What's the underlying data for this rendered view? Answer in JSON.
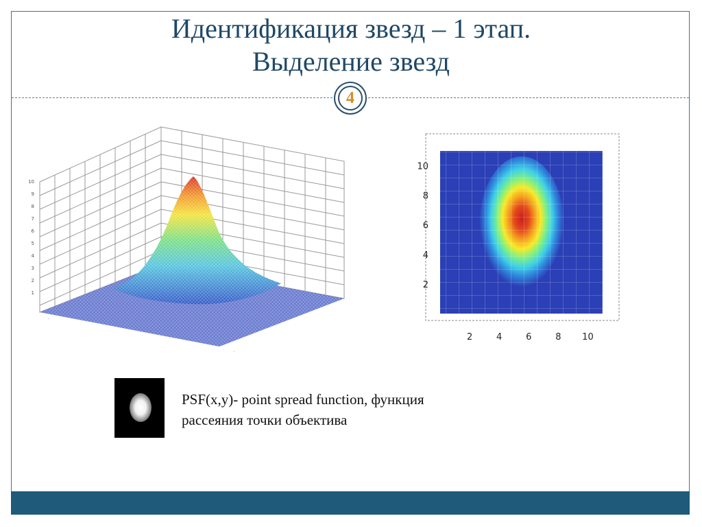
{
  "slide": {
    "title_line1": "Идентификация звезд – 1 этап.",
    "title_line2": "Выделение звезд",
    "page_number": "4"
  },
  "psf_surface": {
    "type": "3d-surface",
    "z_ticks": [
      "1",
      "2",
      "3",
      "4",
      "5",
      "6",
      "7",
      "8",
      "9",
      "10"
    ]
  },
  "heatmap": {
    "type": "heatmap",
    "x_ticks": [
      "2",
      "4",
      "6",
      "8",
      "10"
    ],
    "y_ticks": [
      "2",
      "4",
      "6",
      "8",
      "10"
    ]
  },
  "star_image": {
    "icon": "star-blob"
  },
  "caption": {
    "line1": "PSF(x,y)- point spread function, функция",
    "line2": "рассеяния точки объектива"
  },
  "colors": {
    "title": "#1f4866",
    "bottom_bar": "#1f5a7a",
    "badge_number": "#d68b2b",
    "heatmap_bg": "#2b3fb6"
  }
}
